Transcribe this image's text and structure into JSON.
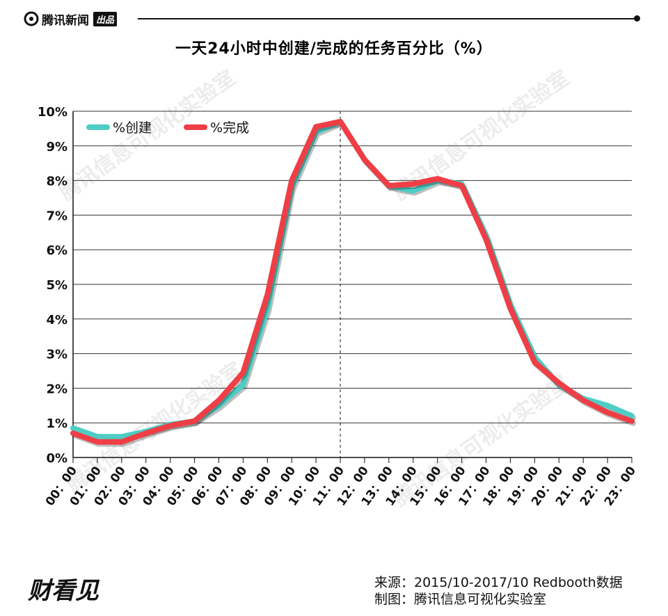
{
  "header": {
    "brand": "腾讯新闻",
    "badge": "出品"
  },
  "title": "一天24小时中创建/完成的任务百分比（%）",
  "watermark": "腾讯信息可视化实验室",
  "footer": {
    "source": "来源：2015/10-2017/10 Redbooth数据",
    "maker": "制图：腾讯信息可视化实验室",
    "logo": "财看见"
  },
  "colors": {
    "created": "#4ecdc4",
    "completed": "#ef3e46",
    "grid": "#333333"
  },
  "chart_data": {
    "type": "line",
    "title": "一天24小时中创建/完成的任务百分比（%）",
    "categories": [
      "00:00",
      "01:00",
      "02:00",
      "03:00",
      "04:00",
      "05:00",
      "06:00",
      "07:00",
      "08:00",
      "09:00",
      "10:00",
      "11:00",
      "12:00",
      "13:00",
      "14:00",
      "15:00",
      "16:00",
      "17:00",
      "18:00",
      "19:00",
      "20:00",
      "21:00",
      "22:00",
      "23:00"
    ],
    "series": [
      {
        "name": "%创建",
        "values": [
          0.85,
          0.6,
          0.6,
          0.75,
          0.95,
          1.05,
          1.5,
          2.1,
          4.3,
          7.8,
          9.4,
          9.7,
          8.6,
          7.85,
          7.7,
          8.0,
          7.9,
          6.4,
          4.4,
          2.9,
          2.1,
          1.7,
          1.5,
          1.2
        ]
      },
      {
        "name": "%完成",
        "values": [
          0.7,
          0.45,
          0.45,
          0.7,
          0.92,
          1.05,
          1.65,
          2.45,
          4.7,
          8.0,
          9.55,
          9.7,
          8.6,
          7.85,
          7.9,
          8.05,
          7.85,
          6.3,
          4.3,
          2.75,
          2.15,
          1.65,
          1.3,
          1.05
        ]
      }
    ],
    "ylim": [
      0,
      10
    ],
    "yticks": [
      "0%",
      "1%",
      "2%",
      "3%",
      "4%",
      "5%",
      "6%",
      "7%",
      "8%",
      "9%",
      "10%"
    ],
    "xticks": [
      "00：00",
      "01：00",
      "02：00",
      "03：00",
      "04：00",
      "05：00",
      "06：00",
      "07：00",
      "08：00",
      "09：00",
      "10：00",
      "11：00",
      "12：00",
      "13：00",
      "14：00",
      "15：00",
      "16：00",
      "17：00",
      "18：00",
      "19：00",
      "20：00",
      "21：00",
      "22：00",
      "23：00"
    ],
    "marker_category": "11:00",
    "legend_position": "top-left",
    "grid": true
  }
}
